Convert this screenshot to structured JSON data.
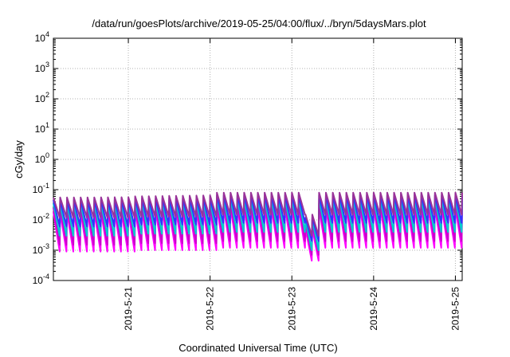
{
  "chart_data": {
    "type": "line",
    "title": "/data/run/goesPlots/archive/2019-05-25/04:00/flux/../bryn/5daysMars.plot",
    "xlabel": "Coordinated Universal Time (UTC)",
    "ylabel": "cGy/day",
    "y_scale": "log",
    "ylim": [
      0.0001,
      10000
    ],
    "xlim": [
      "2019-05-20T02:00",
      "2019-05-25T02:00"
    ],
    "grid": true,
    "legend": "none",
    "x_ticks": [
      "2019-5-21",
      "2019-5-22",
      "2019-5-23",
      "2019-5-24",
      "2019-5-25"
    ],
    "y_ticks": [
      {
        "base": "10",
        "exp": "-4"
      },
      {
        "base": "10",
        "exp": "-3"
      },
      {
        "base": "10",
        "exp": "-2"
      },
      {
        "base": "10",
        "exp": "-1"
      },
      {
        "base": "10",
        "exp": "0"
      },
      {
        "base": "10",
        "exp": "1"
      },
      {
        "base": "10",
        "exp": "2"
      },
      {
        "base": "10",
        "exp": "3"
      },
      {
        "base": "10",
        "exp": "4"
      }
    ],
    "sawtooth_period_hours": 2,
    "series": [
      {
        "color": "#ff00ff",
        "peak": [
          0.018,
          0.02,
          0.025,
          0.005,
          0.026
        ],
        "trough": [
          0.0009,
          0.001,
          0.0012,
          0.00045,
          0.0012
        ]
      },
      {
        "color": "#cc00cc",
        "peak": [
          0.025,
          0.028,
          0.035,
          0.007,
          0.036
        ],
        "trough": [
          0.0015,
          0.0017,
          0.002,
          0.0007,
          0.002
        ]
      },
      {
        "color": "#00cccc",
        "peak": [
          0.035,
          0.04,
          0.05,
          0.01,
          0.05
        ],
        "trough": [
          0.003,
          0.0035,
          0.004,
          0.001,
          0.004
        ]
      },
      {
        "color": "#3333ff",
        "peak": [
          0.045,
          0.05,
          0.065,
          0.012,
          0.065
        ],
        "trough": [
          0.006,
          0.007,
          0.008,
          0.002,
          0.008
        ]
      },
      {
        "color": "#993399",
        "peak": [
          0.055,
          0.06,
          0.08,
          0.015,
          0.08
        ],
        "trough": [
          0.012,
          0.013,
          0.015,
          0.003,
          0.015
        ]
      }
    ],
    "dip": {
      "start": "2019-05-23T03:00",
      "end": "2019-05-23T06:00"
    }
  }
}
